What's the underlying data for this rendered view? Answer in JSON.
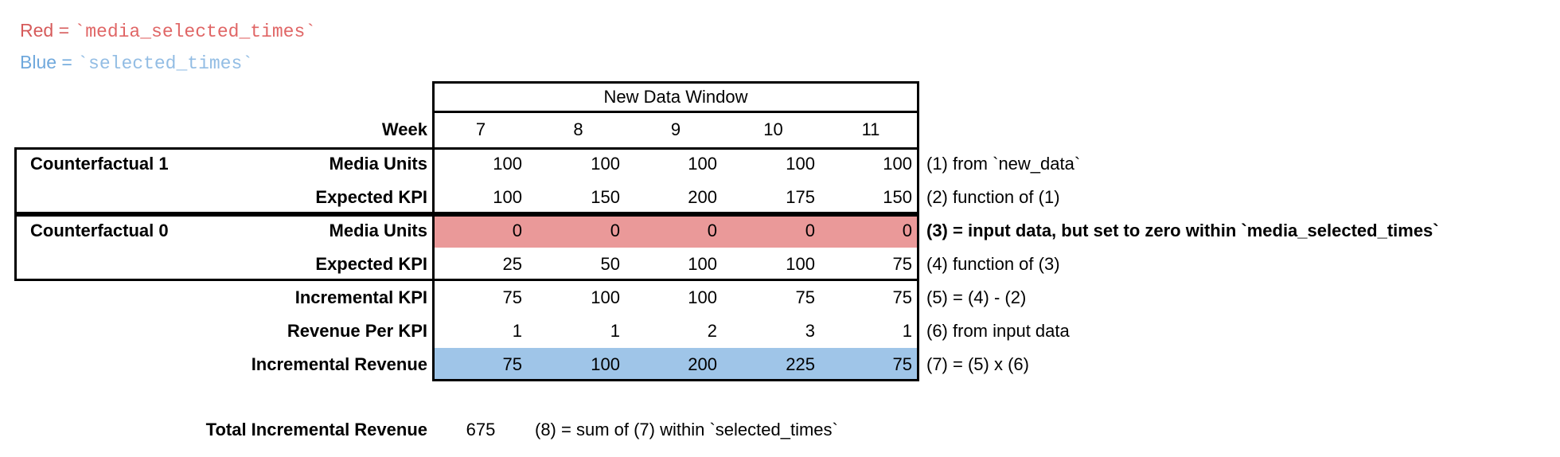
{
  "legend": {
    "red_label": "Red = ",
    "red_code": "`media_selected_times`",
    "blue_label": "Blue = ",
    "blue_code": "`selected_times`",
    "red_label_color": "#d65b5b",
    "red_code_color": "#e06666",
    "blue_label_color": "#6fa8dc",
    "blue_code_color": "#93bde4"
  },
  "table": {
    "header": "New Data Window",
    "week_label": "Week",
    "weeks": [
      "7",
      "8",
      "9",
      "10",
      "11"
    ],
    "groups": [
      {
        "label": "Counterfactual 1"
      },
      {
        "label": "Counterfactual 0"
      }
    ],
    "rows": [
      {
        "label": "Media Units",
        "values": [
          "100",
          "100",
          "100",
          "100",
          "100"
        ],
        "annotation": "(1) from `new_data`"
      },
      {
        "label": "Expected KPI",
        "values": [
          "100",
          "150",
          "200",
          "175",
          "150"
        ],
        "annotation": "(2) function of (1)"
      },
      {
        "label": "Media Units",
        "values": [
          "0",
          "0",
          "0",
          "0",
          "0"
        ],
        "annotation": "(3) = input data, but set to zero within `media_selected_times`",
        "highlight": "red"
      },
      {
        "label": "Expected KPI",
        "values": [
          "25",
          "50",
          "100",
          "100",
          "75"
        ],
        "annotation": "(4) function of (3)"
      },
      {
        "label": "Incremental KPI",
        "values": [
          "75",
          "100",
          "100",
          "75",
          "75"
        ],
        "annotation": "(5) = (4) - (2)"
      },
      {
        "label": "Revenue Per KPI",
        "values": [
          "1",
          "1",
          "2",
          "3",
          "1"
        ],
        "annotation": "(6) from input data"
      },
      {
        "label": "Incremental Revenue",
        "values": [
          "75",
          "100",
          "200",
          "225",
          "75"
        ],
        "annotation": "(7) = (5) x (6)",
        "highlight": "blue"
      }
    ],
    "highlight_colors": {
      "red": "#ea9999",
      "blue": "#9fc5e8"
    }
  },
  "total": {
    "label": "Total Incremental Revenue",
    "value": "675",
    "annotation": "(8) = sum of (7) within `selected_times`"
  }
}
